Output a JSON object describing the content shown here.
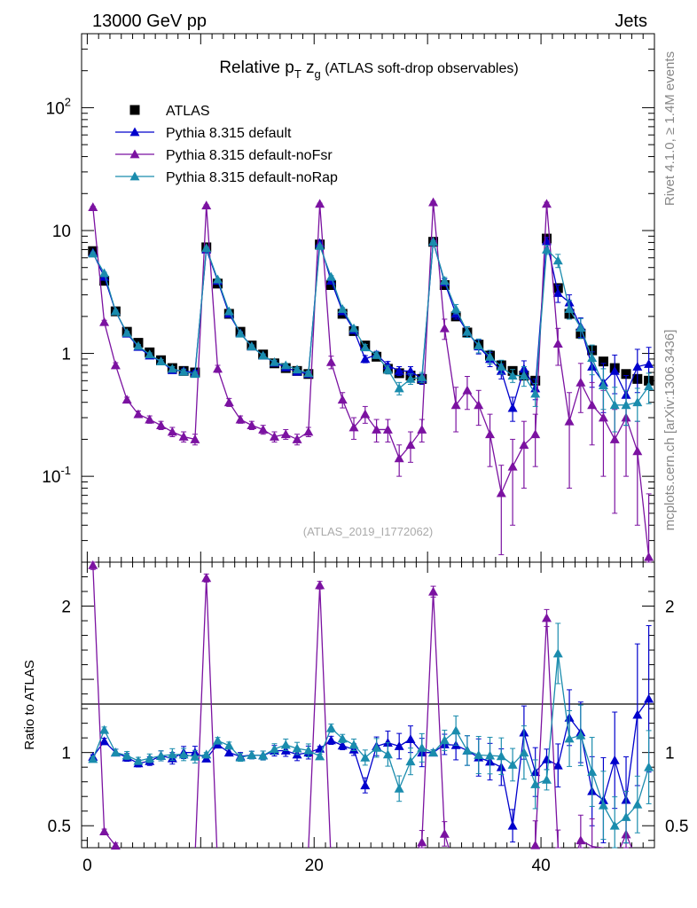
{
  "header": {
    "energy_label": "13000 GeV pp",
    "category_label": "Jets",
    "side_label_top": "Rivet 4.1.0, ≥ 1.4M events",
    "side_label_bottom": "mcplots.cern.ch [arXiv:1306.3436]"
  },
  "chart_data": {
    "type": "scatter",
    "title_prefix": "Relative p",
    "title_sub": "T",
    "title_z": " z",
    "title_zsub": "g",
    "title_suffix": " (ATLAS soft-drop observables)",
    "analysis_label": "(ATLAS_2019_I1772062)",
    "xlabel": "",
    "ylabel_ratio": "Ratio to ATLAS",
    "xlim": [
      -0.5,
      50
    ],
    "ylim_main": [
      0.02,
      400
    ],
    "ylog": true,
    "ylim_ratio": [
      0.35,
      2.3
    ],
    "x_ticks": [
      0,
      20,
      40
    ],
    "y_ticks_main": [
      "10^-1",
      "1",
      "10",
      "10^2"
    ],
    "y_ticks_ratio": [
      "0.5",
      "1",
      "2"
    ],
    "legend_position": "top-left",
    "x": [
      0.5,
      1.5,
      2.5,
      3.5,
      4.5,
      5.5,
      6.5,
      7.5,
      8.5,
      9.5,
      10.5,
      11.5,
      12.5,
      13.5,
      14.5,
      15.5,
      16.5,
      17.5,
      18.5,
      19.5,
      20.5,
      21.5,
      22.5,
      23.5,
      24.5,
      25.5,
      26.5,
      27.5,
      28.5,
      29.5,
      30.5,
      31.5,
      32.5,
      33.5,
      34.5,
      35.5,
      36.5,
      37.5,
      38.5,
      39.5,
      40.5,
      41.5,
      42.5,
      43.5,
      44.5,
      45.5,
      46.5,
      47.5,
      48.5,
      49.5
    ],
    "series": [
      {
        "name": "ATLAS",
        "color": "#000000",
        "marker": "square",
        "values": [
          6.8,
          3.9,
          2.2,
          1.5,
          1.22,
          1.02,
          0.88,
          0.76,
          0.72,
          0.7,
          7.3,
          3.7,
          2.1,
          1.5,
          1.16,
          0.98,
          0.83,
          0.76,
          0.72,
          0.68,
          7.7,
          3.6,
          2.1,
          1.52,
          1.16,
          0.94,
          0.75,
          0.69,
          0.66,
          0.62,
          8.1,
          3.6,
          2.0,
          1.48,
          1.18,
          0.96,
          0.8,
          0.72,
          0.66,
          0.6,
          8.6,
          3.4,
          2.1,
          1.45,
          1.06,
          0.86,
          0.76,
          0.68,
          0.62,
          0.6
        ],
        "errors": [
          0,
          0,
          0,
          0,
          0,
          0,
          0,
          0,
          0,
          0,
          0,
          0,
          0,
          0,
          0,
          0,
          0,
          0,
          0,
          0,
          0,
          0,
          0,
          0,
          0,
          0,
          0,
          0,
          0,
          0,
          0,
          0,
          0,
          0,
          0,
          0,
          0,
          0,
          0,
          0,
          0,
          0,
          0,
          0,
          0,
          0,
          0,
          0,
          0,
          0
        ]
      },
      {
        "name": "Pythia 8.315 default",
        "color": "#0000cc",
        "marker": "triangle",
        "values": [
          6.6,
          4.2,
          2.2,
          1.45,
          1.13,
          0.96,
          0.86,
          0.73,
          0.72,
          0.7,
          7.0,
          3.9,
          2.1,
          1.46,
          1.14,
          0.96,
          0.84,
          0.77,
          0.71,
          0.68,
          7.9,
          3.9,
          2.2,
          1.55,
          0.9,
          0.98,
          0.8,
          0.72,
          0.72,
          0.62,
          8.1,
          3.8,
          2.1,
          1.5,
          1.14,
          0.9,
          0.72,
          0.36,
          0.75,
          0.52,
          8.2,
          3.1,
          2.6,
          1.65,
          0.78,
          0.58,
          0.72,
          0.46,
          0.78,
          0.82
        ],
        "errors": [
          0.1,
          0.08,
          0.05,
          0.04,
          0.03,
          0.03,
          0.03,
          0.03,
          0.03,
          0.03,
          0.1,
          0.08,
          0.05,
          0.04,
          0.03,
          0.03,
          0.03,
          0.03,
          0.03,
          0.03,
          0.12,
          0.1,
          0.06,
          0.06,
          0.06,
          0.06,
          0.06,
          0.06,
          0.06,
          0.06,
          0.15,
          0.25,
          0.2,
          0.15,
          0.15,
          0.12,
          0.1,
          0.08,
          0.12,
          0.1,
          0.6,
          0.5,
          0.4,
          0.3,
          0.25,
          0.25,
          0.25,
          0.2,
          0.3,
          0.3
        ]
      },
      {
        "name": "Pythia 8.315 default-noFsr",
        "color": "#7b12a1",
        "marker": "triangle",
        "values": [
          15.5,
          1.8,
          0.8,
          0.42,
          0.32,
          0.29,
          0.26,
          0.23,
          0.21,
          0.2,
          16.0,
          0.75,
          0.4,
          0.29,
          0.26,
          0.24,
          0.21,
          0.22,
          0.2,
          0.23,
          16.5,
          0.85,
          0.42,
          0.25,
          0.32,
          0.24,
          0.24,
          0.14,
          0.18,
          0.24,
          17.0,
          1.6,
          0.38,
          0.5,
          0.38,
          0.22,
          0.073,
          0.12,
          0.18,
          0.22,
          16.5,
          1.2,
          0.28,
          0.58,
          0.38,
          0.3,
          0.2,
          0.3,
          0.16,
          0.022
        ],
        "errors": [
          0.2,
          0.06,
          0.04,
          0.02,
          0.02,
          0.02,
          0.02,
          0.02,
          0.02,
          0.02,
          0.2,
          0.05,
          0.03,
          0.02,
          0.02,
          0.02,
          0.02,
          0.02,
          0.02,
          0.02,
          0.2,
          0.1,
          0.06,
          0.05,
          0.05,
          0.05,
          0.05,
          0.04,
          0.05,
          0.05,
          0.3,
          0.3,
          0.15,
          0.15,
          0.12,
          0.1,
          0.05,
          0.08,
          0.1,
          0.1,
          0.5,
          0.4,
          0.2,
          0.25,
          0.2,
          0.2,
          0.15,
          0.2,
          0.12,
          0.05
        ]
      },
      {
        "name": "Pythia 8.315 default-noRap",
        "color": "#1a8cad",
        "marker": "triangle",
        "values": [
          6.5,
          4.5,
          2.2,
          1.47,
          1.15,
          0.98,
          0.86,
          0.75,
          0.71,
          0.68,
          7.2,
          4.0,
          2.2,
          1.45,
          1.14,
          0.96,
          0.85,
          0.8,
          0.74,
          0.69,
          7.5,
          4.2,
          2.3,
          1.6,
          1.12,
          0.97,
          0.74,
          0.52,
          0.62,
          0.64,
          8.1,
          3.9,
          2.3,
          1.5,
          1.16,
          0.94,
          0.78,
          0.66,
          0.66,
          0.47,
          7.0,
          5.7,
          2.3,
          1.62,
          0.92,
          0.55,
          0.38,
          0.38,
          0.4,
          0.54
        ],
        "errors": [
          0.1,
          0.08,
          0.05,
          0.04,
          0.03,
          0.03,
          0.03,
          0.03,
          0.03,
          0.03,
          0.1,
          0.08,
          0.05,
          0.04,
          0.03,
          0.03,
          0.03,
          0.03,
          0.03,
          0.03,
          0.12,
          0.1,
          0.06,
          0.06,
          0.06,
          0.06,
          0.06,
          0.06,
          0.06,
          0.06,
          0.15,
          0.25,
          0.2,
          0.15,
          0.15,
          0.12,
          0.1,
          0.08,
          0.12,
          0.1,
          0.6,
          0.7,
          0.4,
          0.3,
          0.25,
          0.2,
          0.15,
          0.12,
          0.12,
          0.15
        ]
      }
    ]
  }
}
